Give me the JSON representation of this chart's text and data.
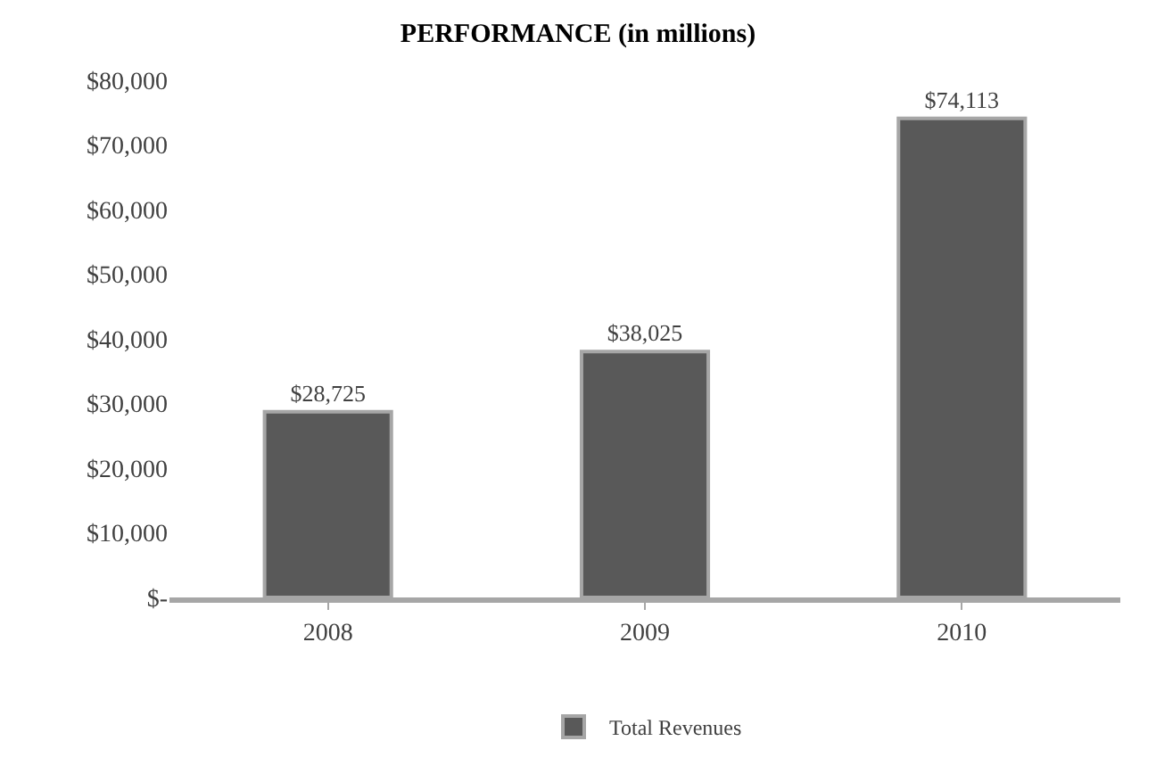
{
  "chart_data": {
    "type": "bar",
    "title": "PERFORMANCE (in millions)",
    "categories": [
      "2008",
      "2009",
      "2010"
    ],
    "series": [
      {
        "name": "Total Revenues",
        "color": "#595959",
        "values": [
          28725,
          38025,
          74113
        ],
        "value_labels": [
          "$28,725",
          "$38,025",
          "$74,113"
        ]
      }
    ],
    "ylim": [
      0,
      80000
    ],
    "yticks": [
      {
        "value": 0,
        "label": "$-"
      },
      {
        "value": 10000,
        "label": "$10,000"
      },
      {
        "value": 20000,
        "label": "$20,000"
      },
      {
        "value": 30000,
        "label": "$30,000"
      },
      {
        "value": 40000,
        "label": "$40,000"
      },
      {
        "value": 50000,
        "label": "$50,000"
      },
      {
        "value": 60000,
        "label": "$60,000"
      },
      {
        "value": 70000,
        "label": "$70,000"
      },
      {
        "value": 80000,
        "label": "$80,000"
      }
    ],
    "grid": false,
    "legend": "bottom"
  }
}
